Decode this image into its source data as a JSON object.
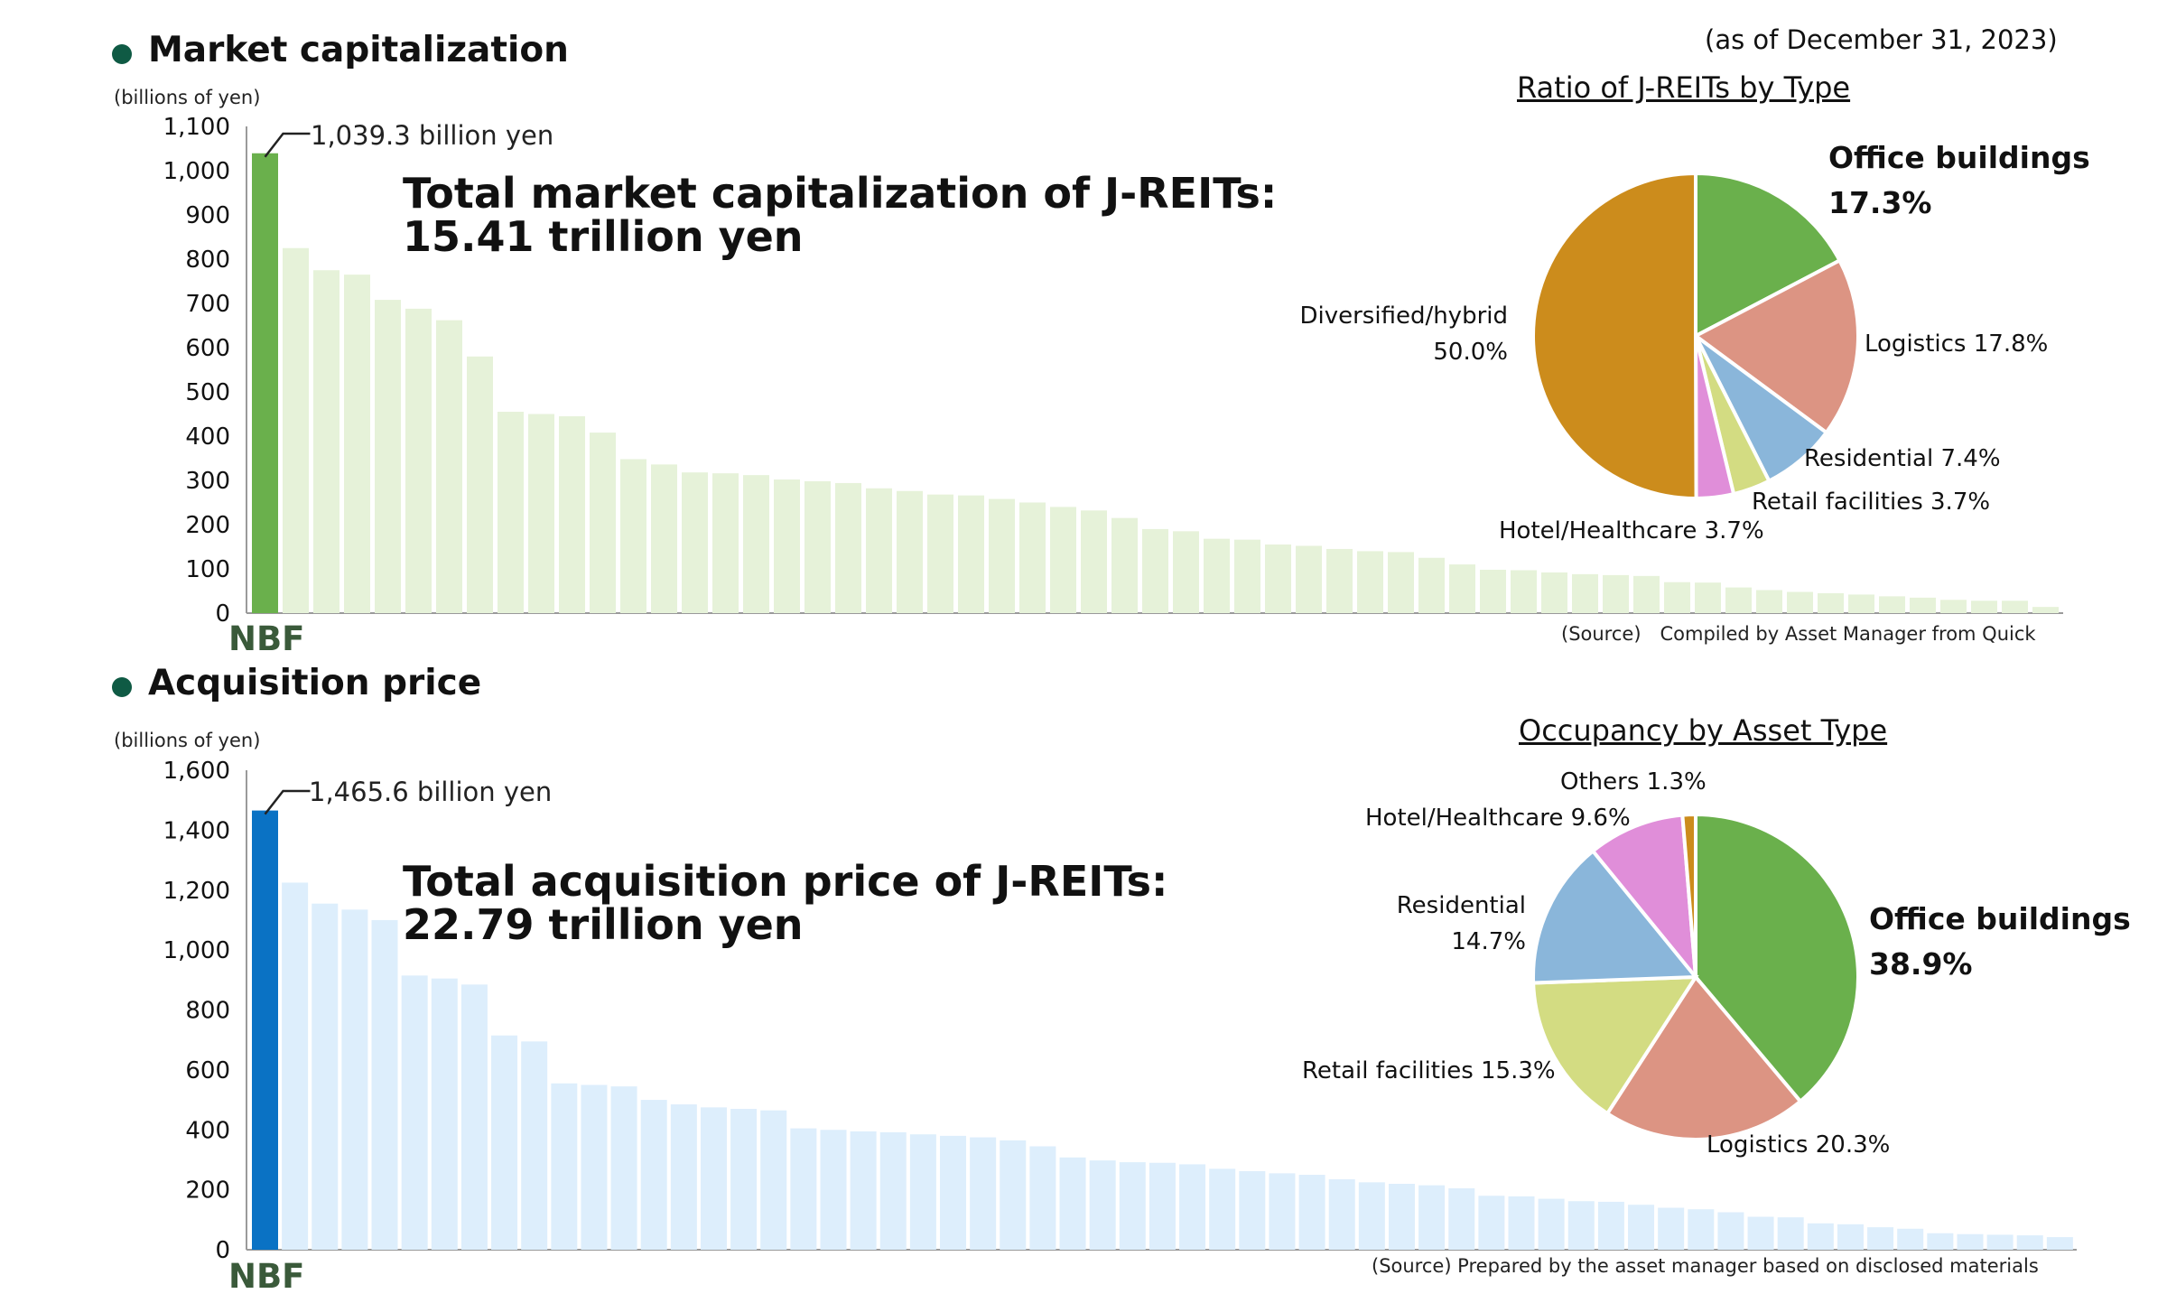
{
  "as_of": "(as of December 31, 2023)",
  "chart_data": [
    {
      "type": "bar",
      "title": "Market capitalization",
      "unit_label": "(billions of yen)",
      "ylim": [
        0,
        1100
      ],
      "yticks": [
        "0",
        "100",
        "200",
        "300",
        "400",
        "500",
        "600",
        "700",
        "800",
        "900",
        "1,000",
        "1,100"
      ],
      "highlight_label": "NBF",
      "highlight_value": 1039.3,
      "callout": "1,039.3 billion yen",
      "total_line1": "Total market capitalization of J-REITs:",
      "total_line2": "15.41 trillion yen",
      "source": "(Source)　Compiled by Asset Manager from Quick",
      "colors": {
        "highlight": "#6ab04c",
        "others": "#e6f2d9"
      },
      "values": [
        1039.3,
        825,
        775,
        765,
        708,
        688,
        662,
        580,
        455,
        450,
        445,
        408,
        348,
        336,
        318,
        316,
        312,
        302,
        298,
        294,
        282,
        276,
        268,
        266,
        258,
        250,
        240,
        232,
        215,
        190,
        185,
        168,
        166,
        155,
        152,
        145,
        140,
        138,
        125,
        110,
        98,
        97,
        92,
        88,
        86,
        84,
        70,
        69,
        58,
        52,
        48,
        45,
        42,
        38,
        35,
        30,
        28,
        28,
        14
      ]
    },
    {
      "type": "bar",
      "title": "Acquisition price",
      "unit_label": "(billions of yen)",
      "ylim": [
        0,
        1600
      ],
      "yticks": [
        "0",
        "200",
        "400",
        "600",
        "800",
        "1,000",
        "1,200",
        "1,400",
        "1,600"
      ],
      "highlight_label": "NBF",
      "highlight_value": 1465.6,
      "callout": "1,465.6 billion yen",
      "total_line1": "Total acquisition price of J-REITs:",
      "total_line2": "22.79 trillion yen",
      "source": "(Source) Prepared by the asset manager based on disclosed materials",
      "colors": {
        "highlight": "#0a72c4",
        "others": "#ddeefc"
      },
      "values": [
        1465.6,
        1225,
        1155,
        1135,
        1100,
        915,
        905,
        885,
        715,
        695,
        555,
        550,
        545,
        500,
        485,
        475,
        470,
        465,
        405,
        400,
        395,
        392,
        385,
        380,
        375,
        365,
        345,
        308,
        298,
        292,
        290,
        285,
        270,
        262,
        255,
        250,
        235,
        225,
        220,
        215,
        205,
        180,
        178,
        170,
        162,
        160,
        150,
        140,
        135,
        125,
        110,
        108,
        88,
        85,
        75,
        70,
        55,
        52,
        50,
        48,
        42
      ]
    },
    {
      "type": "pie",
      "title": "Ratio of J-REITs by Type",
      "slices": [
        {
          "name": "Office buildings",
          "value": 17.3,
          "color": "#6ab04c",
          "label": "17.3%"
        },
        {
          "name": "Logistics",
          "value": 17.8,
          "color": "#dc9483",
          "label": "17.8%"
        },
        {
          "name": "Residential",
          "value": 7.4,
          "color": "#8ab6da",
          "label": "7.4%"
        },
        {
          "name": "Retail facilities",
          "value": 3.7,
          "color": "#d3dc82",
          "label": "3.7%"
        },
        {
          "name": "Hotel/Healthcare",
          "value": 3.7,
          "color": "#e08ed9",
          "label": "3.7%"
        },
        {
          "name": "Diversified/hybrid",
          "value": 50.0,
          "color": "#cc8c1c",
          "label": "50.0%"
        }
      ]
    },
    {
      "type": "pie",
      "title": "Occupancy by Asset Type",
      "slices": [
        {
          "name": "Office buildings",
          "value": 38.9,
          "color": "#6ab04c",
          "label": "38.9%"
        },
        {
          "name": "Logistics",
          "value": 20.3,
          "color": "#dc9483",
          "label": "20.3%"
        },
        {
          "name": "Retail facilities",
          "value": 15.3,
          "color": "#d3dc82",
          "label": "15.3%"
        },
        {
          "name": "Residential",
          "value": 14.7,
          "color": "#8ab6da",
          "label": "14.7%"
        },
        {
          "name": "Hotel/Healthcare",
          "value": 9.6,
          "color": "#e08ed9",
          "label": "9.6%"
        },
        {
          "name": "Others",
          "value": 1.3,
          "color": "#cc8c1c",
          "label": "1.3%"
        }
      ]
    }
  ]
}
